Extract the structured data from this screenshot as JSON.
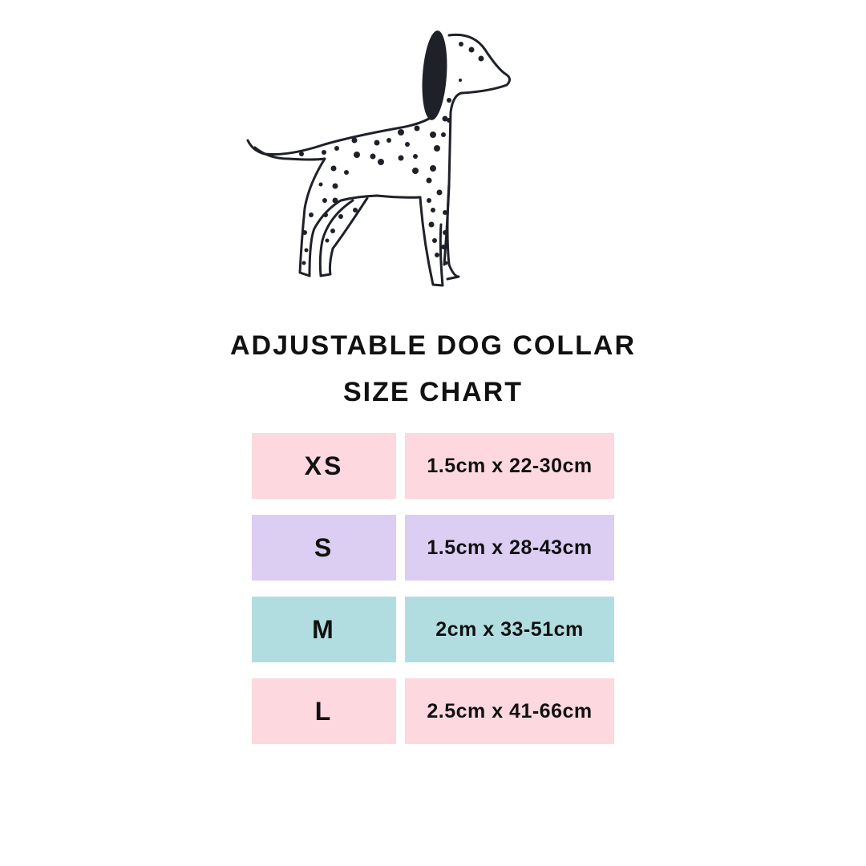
{
  "illustration": {
    "subject": "dalmatian-dog",
    "ink_color": "#1f2129"
  },
  "title": {
    "line1": "Adjustable Dog Collar",
    "line2": "Size Chart"
  },
  "size_chart": {
    "rows": [
      {
        "size": "XS",
        "measurement": "1.5cm x 22-30cm",
        "color": "#fdd8df"
      },
      {
        "size": "S",
        "measurement": "1.5cm x 28-43cm",
        "color": "#dccdf2"
      },
      {
        "size": "M",
        "measurement": "2cm x 33-51cm",
        "color": "#b2dde0"
      },
      {
        "size": "L",
        "measurement": "2.5cm x 41-66cm",
        "color": "#fdd8df"
      }
    ]
  }
}
